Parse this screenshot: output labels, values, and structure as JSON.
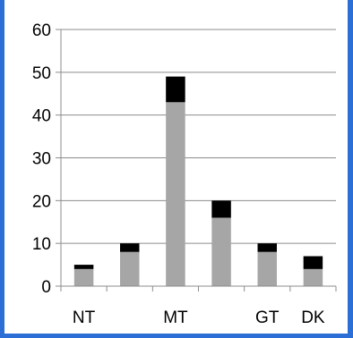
{
  "chart_data": {
    "type": "bar",
    "stacked": true,
    "categories": [
      "NT",
      "",
      "MT",
      "",
      "GT",
      "DK"
    ],
    "series": [
      {
        "values": [
          4,
          8,
          43,
          16,
          8,
          4
        ],
        "color": "#a6a6a6"
      },
      {
        "values": [
          1,
          2,
          6,
          4,
          2,
          3
        ],
        "color": "#000000"
      }
    ],
    "title": "",
    "xlabel": "",
    "ylabel": "",
    "ylim": [
      0,
      60
    ],
    "yticks": [
      0,
      10,
      20,
      30,
      40,
      50,
      60
    ],
    "grid": true,
    "legend": "none"
  }
}
